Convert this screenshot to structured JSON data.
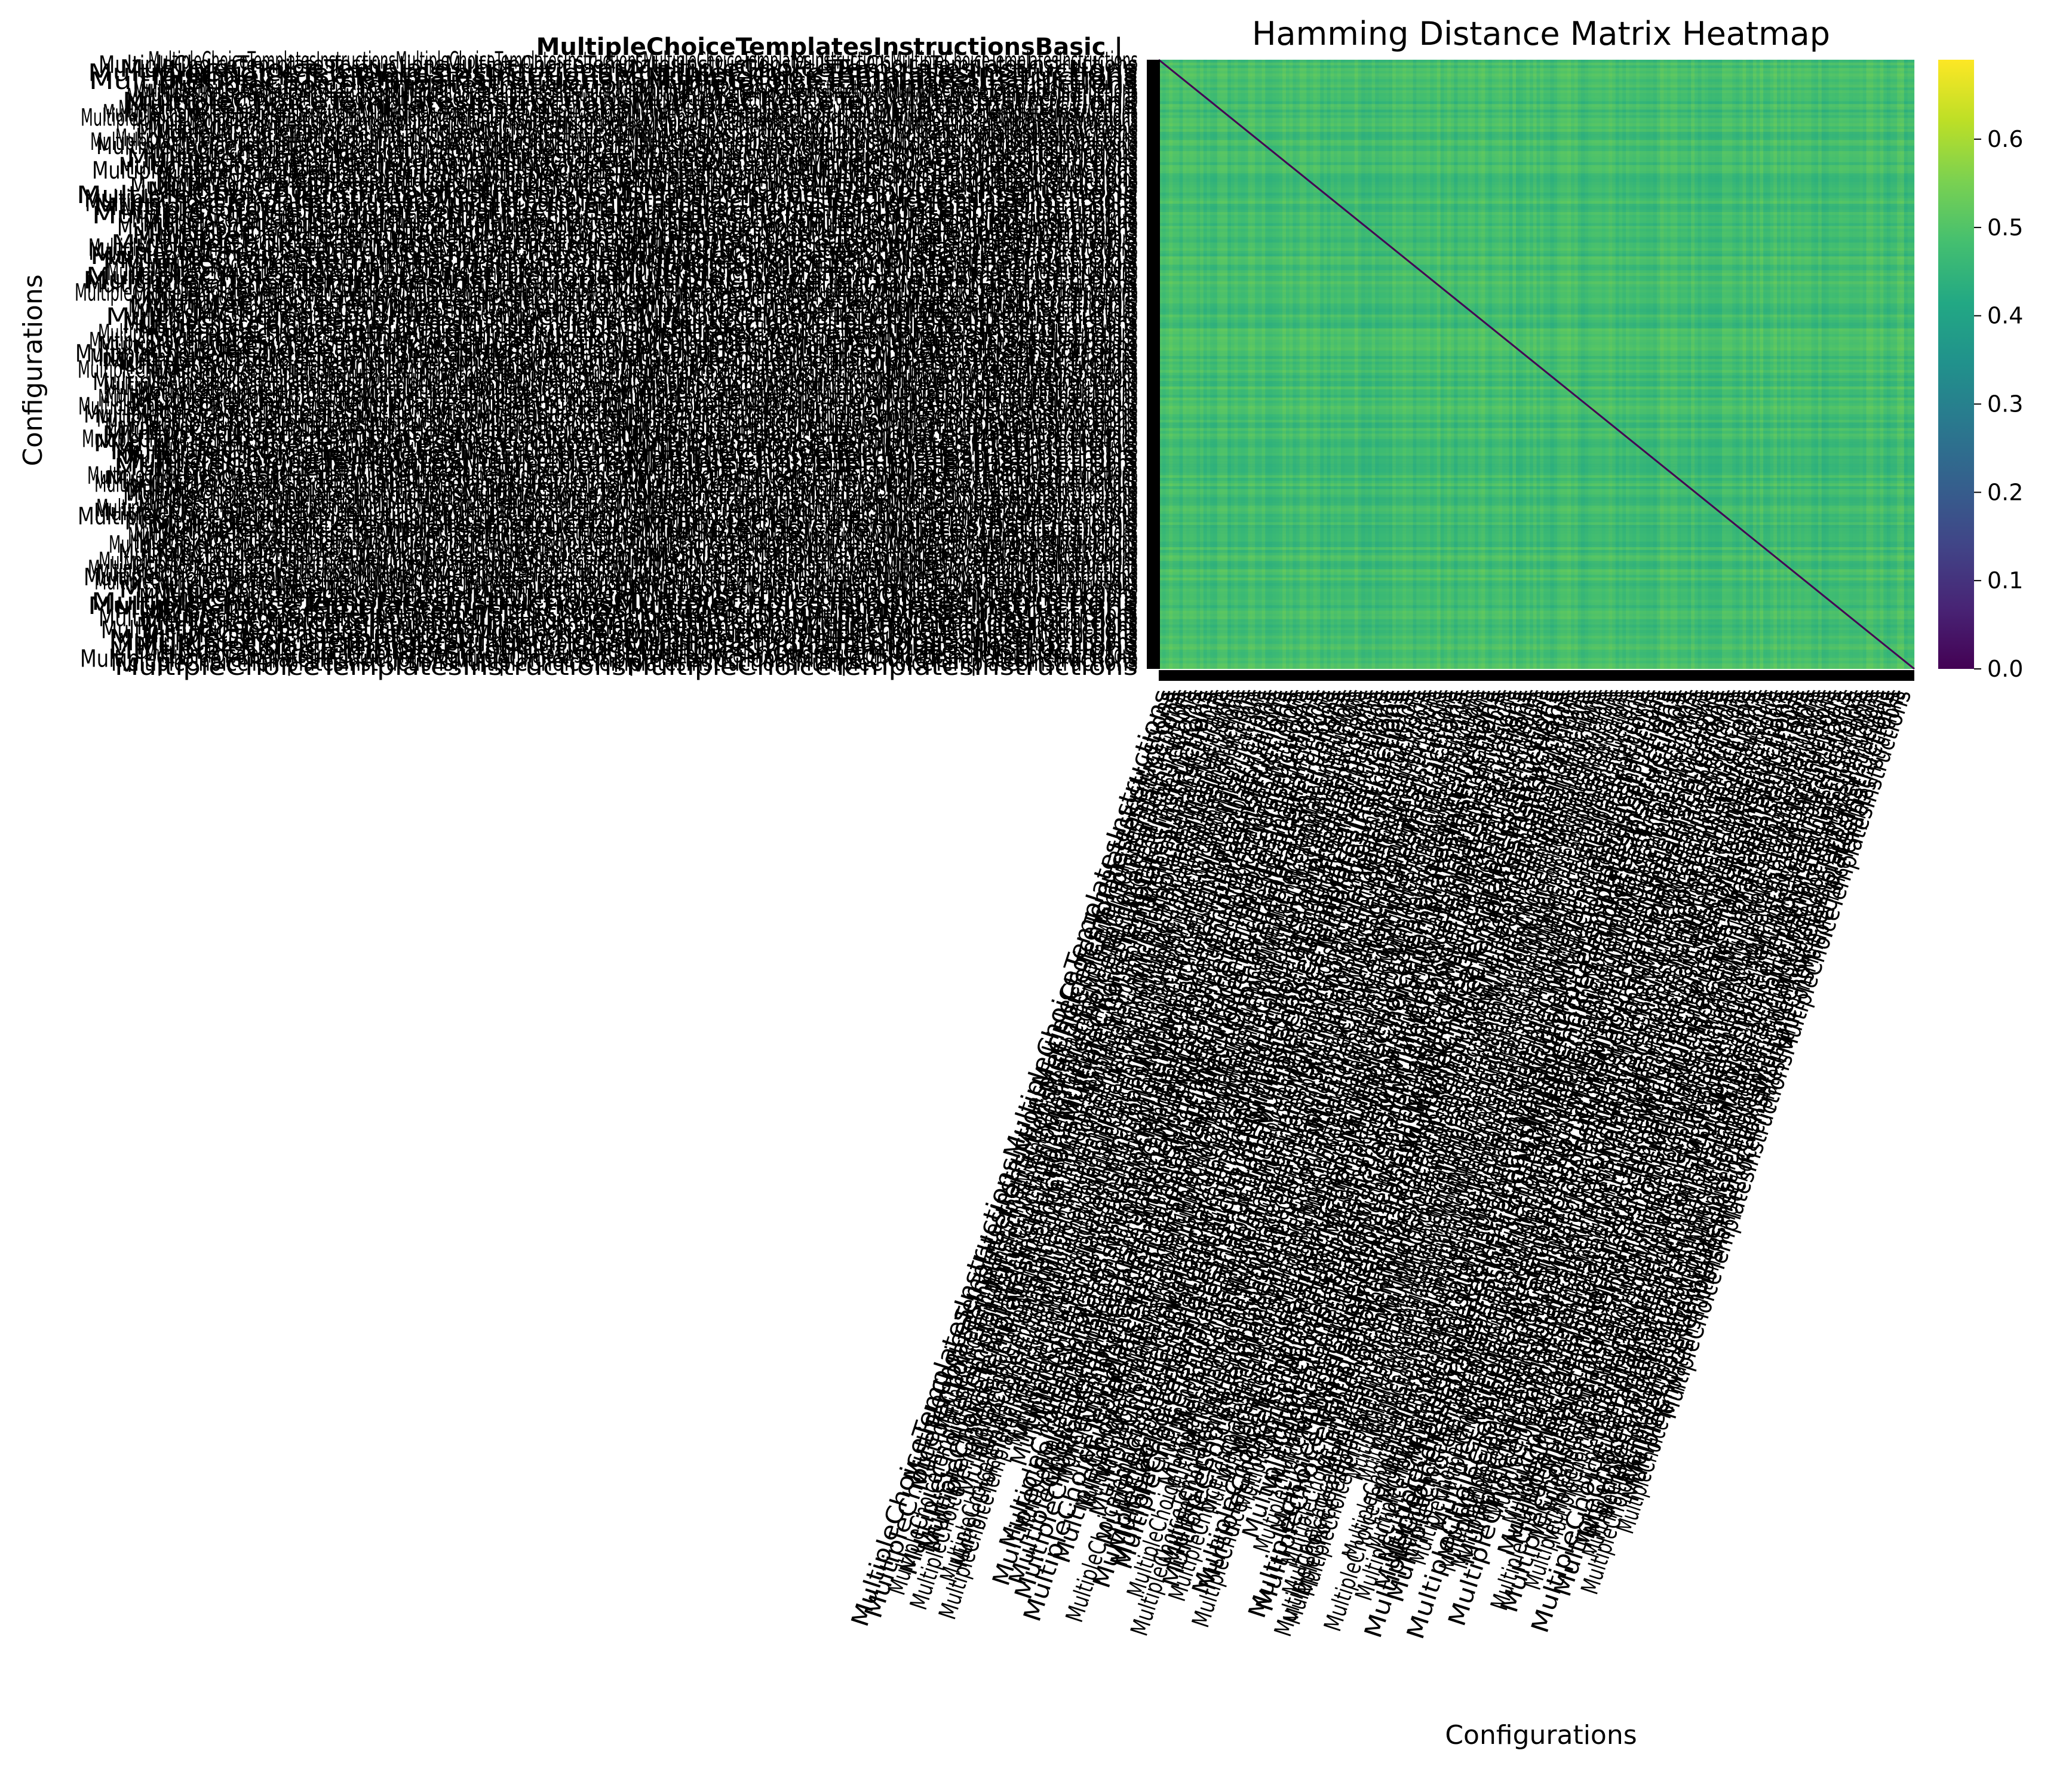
{
  "chart_data": {
    "type": "heatmap",
    "title": "Hamming Distance Matrix Heatmap",
    "xlabel": "Configurations",
    "ylabel": "Configurations",
    "colormap": "viridis",
    "colorbar": {
      "range": [
        0.0,
        0.69
      ],
      "ticks": [
        0.0,
        0.1,
        0.2,
        0.3,
        0.4,
        0.5,
        0.6
      ],
      "tick_labels": [
        "0.0",
        "0.1",
        "0.2",
        "0.3",
        "0.4",
        "0.5",
        "0.6"
      ],
      "placement": "right"
    },
    "matrix": {
      "diagonal_value": 0.0,
      "typical_value": 0.48,
      "typical_range": [
        0.4,
        0.55
      ],
      "symmetric": true
    },
    "tick_label_prefix": "MultipleChoiceTemplatesInstructions",
    "top_overlap_label": "MultipleChoiceTemplatesInstructionsBasic |",
    "grid": false
  }
}
